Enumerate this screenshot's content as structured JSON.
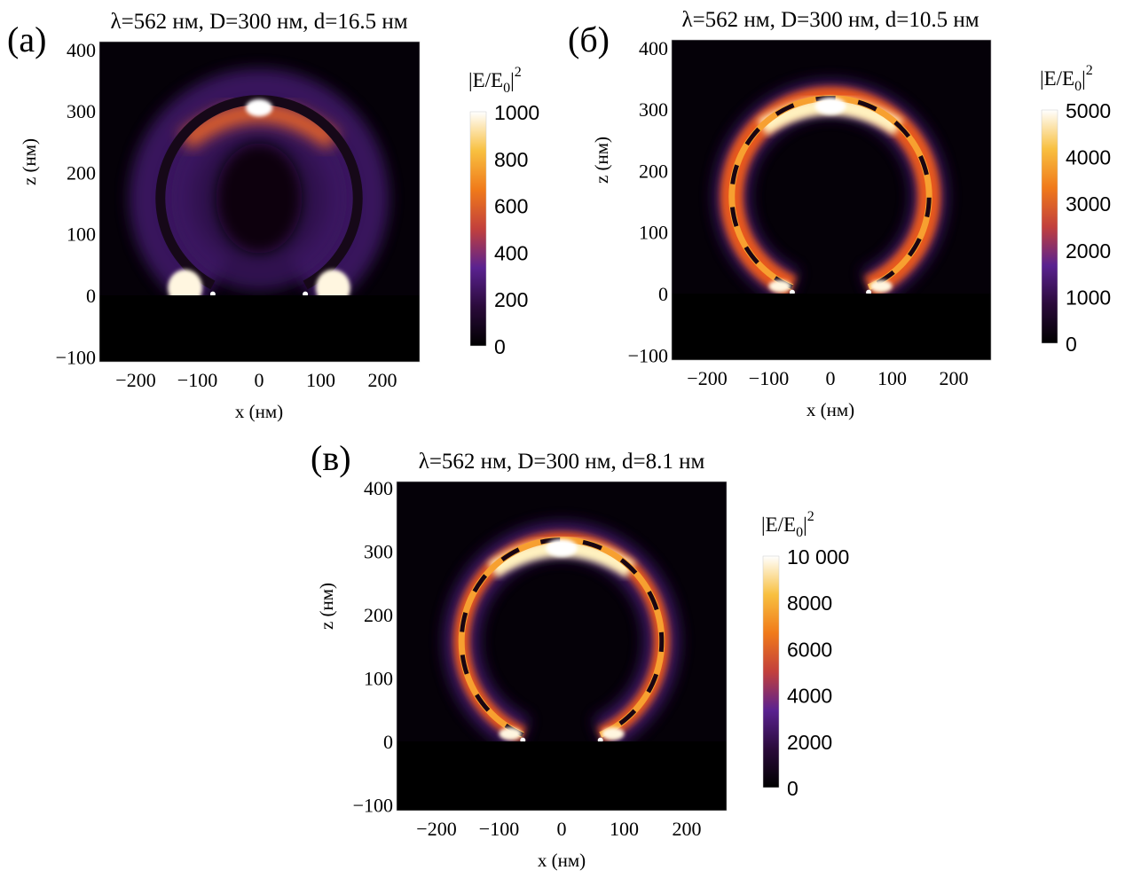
{
  "chart_data": [
    {
      "type": "heatmap",
      "panel_label": "(a)",
      "title": "λ=562 нм, D=300 нм, d=16.5 нм",
      "xlabel": "x (нм)",
      "ylabel": "z (нм)",
      "xlim": [
        -260,
        260
      ],
      "ylim": [
        -110,
        415
      ],
      "xticks": [
        "−200",
        "−100",
        "0",
        "100",
        "200"
      ],
      "xtick_values": [
        -200,
        -100,
        0,
        100,
        200
      ],
      "yticks": [
        "−100",
        "0",
        "100",
        "200",
        "300",
        "400"
      ],
      "ytick_values": [
        -100,
        0,
        100,
        200,
        300,
        400
      ],
      "colorbar": {
        "label": "|E/E",
        "label_sub": "0",
        "label_sup": "2",
        "range": [
          0,
          1000
        ],
        "ticks": [
          "0",
          "200",
          "400",
          "600",
          "800",
          "1000"
        ],
        "tick_values": [
          0,
          200,
          400,
          600,
          800,
          1000
        ]
      },
      "colormap": [
        "#000000",
        "#2a0a3a",
        "#5a2290",
        "#c2403c",
        "#f07a1a",
        "#f8c040",
        "#ffffff"
      ]
    },
    {
      "type": "heatmap",
      "panel_label": "(б)",
      "title": "λ=562 нм, D=300 нм, d=10.5 нм",
      "xlabel": "x (нм)",
      "ylabel": "z (нм)",
      "xlim": [
        -260,
        260
      ],
      "ylim": [
        -110,
        415
      ],
      "xticks": [
        "−200",
        "−100",
        "0",
        "100",
        "200"
      ],
      "xtick_values": [
        -200,
        -100,
        0,
        100,
        200
      ],
      "yticks": [
        "−100",
        "0",
        "100",
        "200",
        "300",
        "400"
      ],
      "ytick_values": [
        -100,
        0,
        100,
        200,
        300,
        400
      ],
      "colorbar": {
        "label": "|E/E",
        "label_sub": "0",
        "label_sup": "2",
        "range": [
          0,
          5000
        ],
        "ticks": [
          "0",
          "1000",
          "2000",
          "3000",
          "4000",
          "5000"
        ],
        "tick_values": [
          0,
          1000,
          2000,
          3000,
          4000,
          5000
        ]
      },
      "colormap": [
        "#000000",
        "#2a0a3a",
        "#5a2290",
        "#c2403c",
        "#f07a1a",
        "#f8c040",
        "#ffffff"
      ]
    },
    {
      "type": "heatmap",
      "panel_label": "(в)",
      "title": "λ=562 нм, D=300 нм, d=8.1 нм",
      "xlabel": "x (нм)",
      "ylabel": "z (нм)",
      "xlim": [
        -260,
        260
      ],
      "ylim": [
        -110,
        415
      ],
      "xticks": [
        "−200",
        "−100",
        "0",
        "100",
        "200"
      ],
      "xtick_values": [
        -200,
        -100,
        0,
        100,
        200
      ],
      "yticks": [
        "−100",
        "0",
        "100",
        "200",
        "300",
        "400"
      ],
      "ytick_values": [
        -100,
        0,
        100,
        200,
        300,
        400
      ],
      "colorbar": {
        "label": "|E/E",
        "label_sub": "0",
        "label_sup": "2",
        "range": [
          0,
          10000
        ],
        "ticks": [
          "0",
          "2000",
          "4000",
          "6000",
          "8000",
          "10 000"
        ],
        "tick_values": [
          0,
          2000,
          4000,
          6000,
          8000,
          10000
        ]
      },
      "colormap": [
        "#000000",
        "#2a0a3a",
        "#5a2290",
        "#c2403c",
        "#f07a1a",
        "#f8c040",
        "#ffffff"
      ]
    }
  ]
}
